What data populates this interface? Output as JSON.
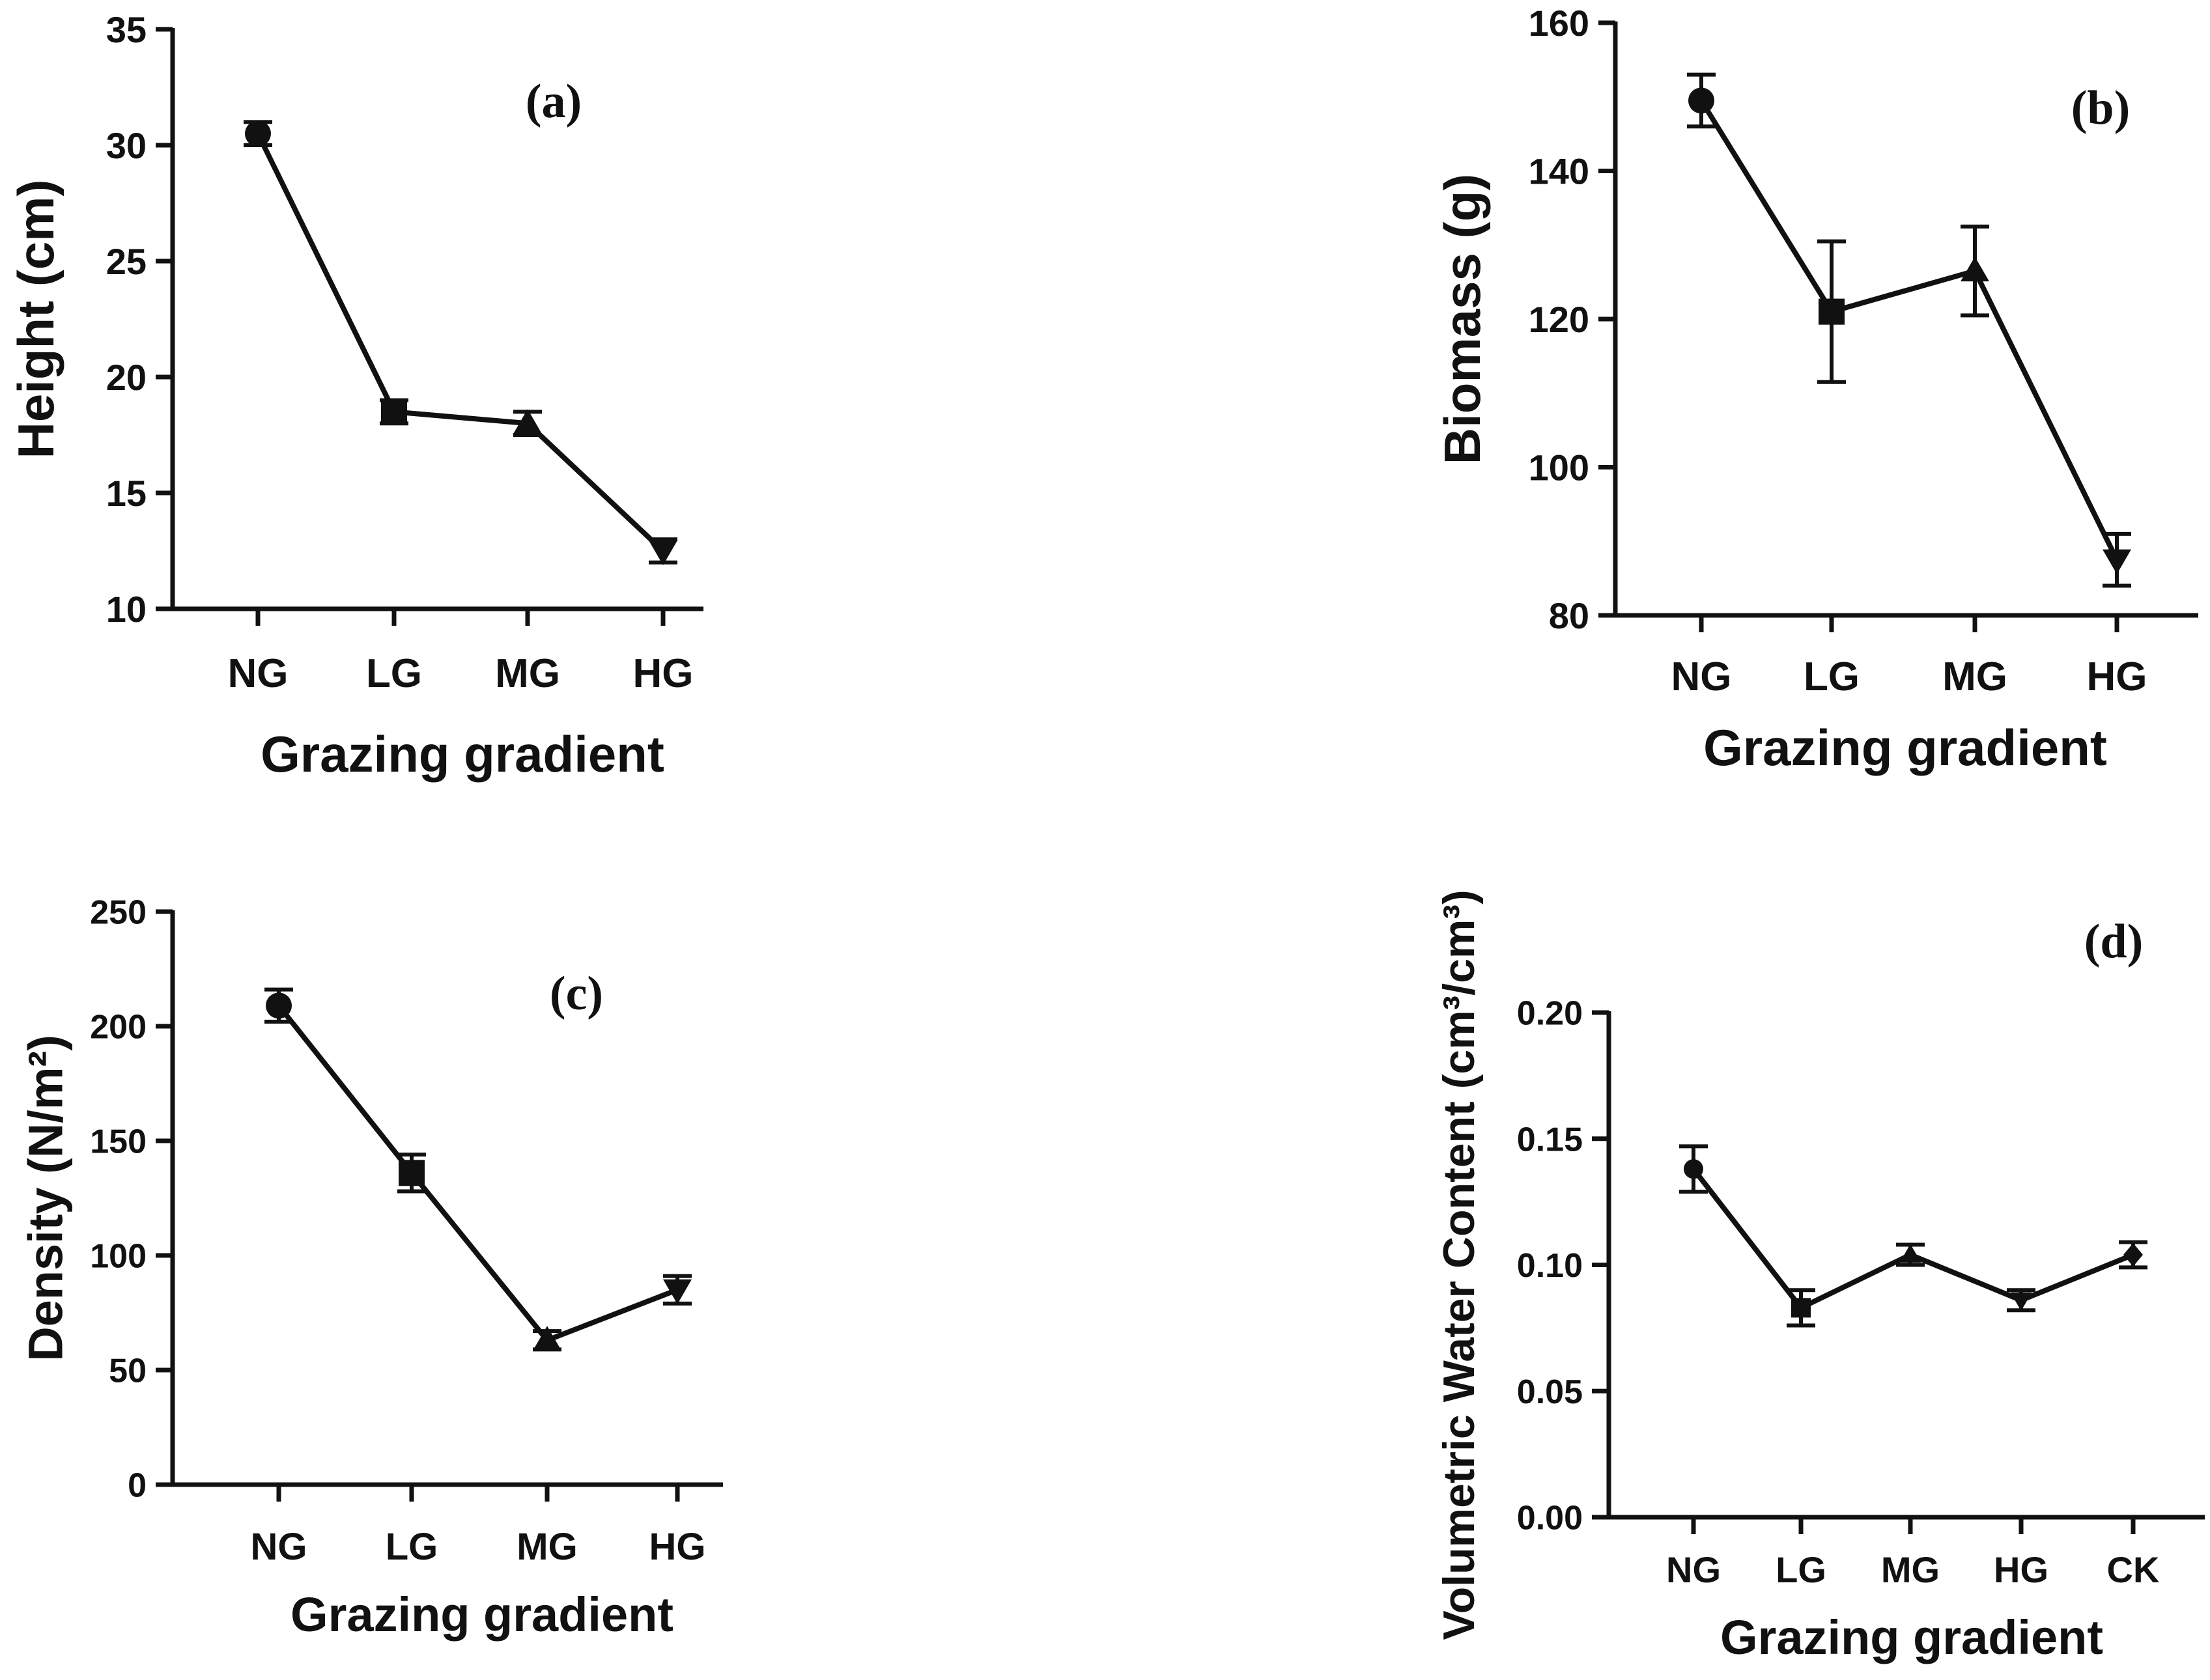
{
  "figure": {
    "colors": {
      "line": "#111111",
      "background": "#ffffff"
    }
  },
  "chart_data": [
    {
      "id": "a",
      "panel_label": "(a)",
      "type": "line",
      "categories": [
        "NG",
        "LG",
        "MG",
        "HG"
      ],
      "values": [
        30.5,
        18.5,
        18.0,
        12.5
      ],
      "errors": [
        0.5,
        0.5,
        0.5,
        0.5
      ],
      "markers": [
        "circle",
        "square",
        "triangle-up",
        "triangle-down"
      ],
      "xlabel": "Grazing gradient",
      "ylabel": "Height (cm)",
      "ylim": [
        10,
        35
      ],
      "yticks": [
        10,
        15,
        20,
        25,
        30,
        35
      ],
      "ytick_labels": [
        "10",
        "15",
        "20",
        "25",
        "30",
        "35"
      ]
    },
    {
      "id": "b",
      "panel_label": "(b)",
      "type": "line",
      "categories": [
        "NG",
        "LG",
        "MG",
        "HG"
      ],
      "values": [
        149.5,
        121.0,
        126.5,
        87.5
      ],
      "errors": [
        3.5,
        9.5,
        6.0,
        3.5
      ],
      "markers": [
        "circle",
        "square",
        "triangle-up",
        "triangle-down"
      ],
      "xlabel": "Grazing gradient",
      "ylabel": "Biomass (g)",
      "ylim": [
        80,
        160
      ],
      "yticks": [
        80,
        100,
        120,
        140,
        160
      ],
      "ytick_labels": [
        "80",
        "100",
        "120",
        "140",
        "160"
      ]
    },
    {
      "id": "c",
      "panel_label": "(c)",
      "type": "line",
      "categories": [
        "NG",
        "LG",
        "MG",
        "HG"
      ],
      "values": [
        209,
        136,
        63,
        85
      ],
      "errors": [
        7,
        8,
        4,
        6
      ],
      "markers": [
        "circle",
        "square",
        "triangle-up",
        "triangle-down"
      ],
      "xlabel": "Grazing gradient",
      "ylabel": "Density (N/m²)",
      "ylim": [
        0,
        250
      ],
      "yticks": [
        0,
        50,
        100,
        150,
        200,
        250
      ],
      "ytick_labels": [
        "0",
        "50",
        "100",
        "150",
        "200",
        "250"
      ]
    },
    {
      "id": "d",
      "panel_label": "(d)",
      "type": "line",
      "categories": [
        "NG",
        "LG",
        "MG",
        "HG",
        "CK"
      ],
      "values": [
        0.138,
        0.083,
        0.104,
        0.086,
        0.104
      ],
      "errors": [
        0.009,
        0.007,
        0.004,
        0.004,
        0.005
      ],
      "markers": [
        "circle",
        "square",
        "triangle-up",
        "triangle-down",
        "diamond"
      ],
      "xlabel": "Grazing gradient",
      "ylabel": "Volumetric Water Content (cm³/cm³)",
      "ylim": [
        0,
        0.2
      ],
      "yticks": [
        0,
        0.05,
        0.1,
        0.15,
        0.2
      ],
      "ytick_labels": [
        "0.00",
        "0.05",
        "0.10",
        "0.15",
        "0.20"
      ]
    }
  ]
}
